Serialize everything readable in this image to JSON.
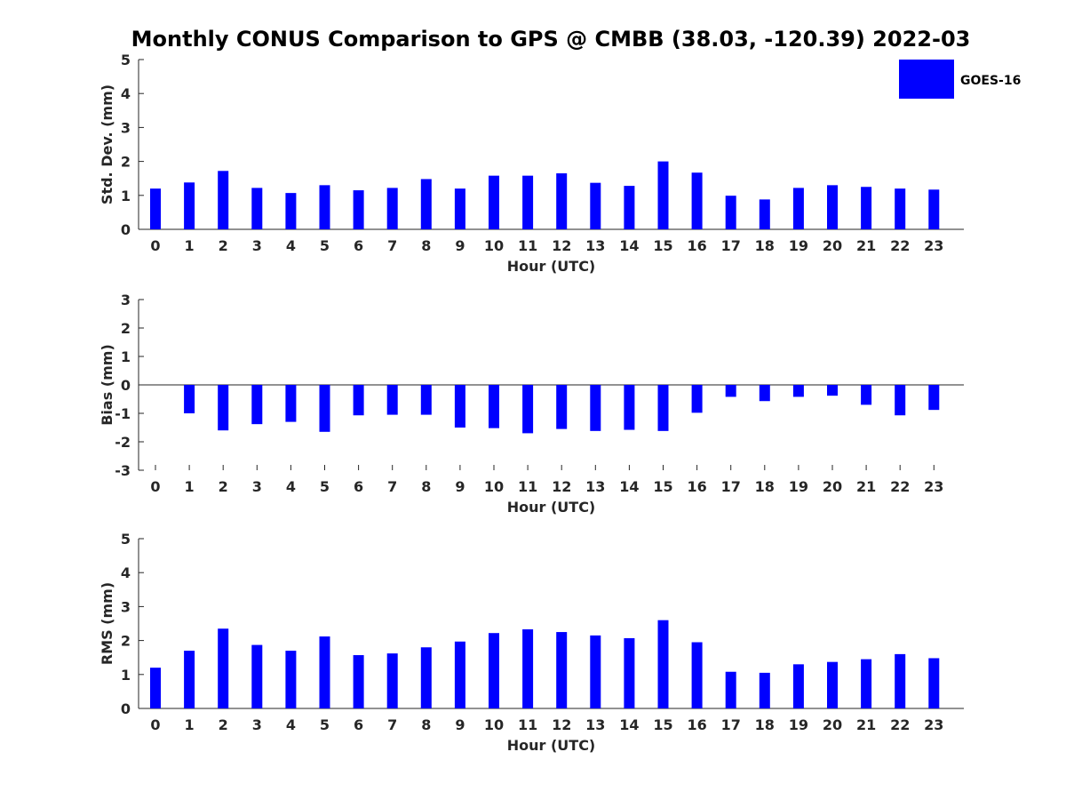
{
  "chart_data": {
    "title": "Monthly CONUS Comparison to GPS @ CMBB (38.03, -120.39) 2022-03",
    "legend": {
      "entries": [
        "GOES-16"
      ],
      "placement": "top-right"
    },
    "bar_color": "#0000ff",
    "x_categories": [
      "0",
      "1",
      "2",
      "3",
      "4",
      "5",
      "6",
      "7",
      "8",
      "9",
      "10",
      "11",
      "12",
      "13",
      "14",
      "15",
      "16",
      "17",
      "18",
      "19",
      "20",
      "21",
      "22",
      "23"
    ],
    "panels": [
      {
        "type": "bar",
        "xlabel": "Hour (UTC)",
        "ylabel": "Std. Dev. (mm)",
        "ylim": [
          0,
          5
        ],
        "yticks": [
          "0",
          "1",
          "2",
          "3",
          "4",
          "5"
        ],
        "series": [
          {
            "name": "GOES-16",
            "values": [
              1.2,
              1.38,
              1.72,
              1.22,
              1.07,
              1.3,
              1.15,
              1.22,
              1.48,
              1.2,
              1.58,
              1.58,
              1.65,
              1.37,
              1.28,
              2.0,
              1.67,
              0.99,
              0.88,
              1.22,
              1.3,
              1.25,
              1.2,
              1.17
            ]
          }
        ]
      },
      {
        "type": "bar",
        "xlabel": "Hour (UTC)",
        "ylabel": "Bias (mm)",
        "ylim": [
          -3,
          3
        ],
        "yticks": [
          "-3",
          "-2",
          "-1",
          "0",
          "1",
          "2",
          "3"
        ],
        "series": [
          {
            "name": "GOES-16",
            "values": [
              0.0,
              -1.0,
              -1.6,
              -1.38,
              -1.3,
              -1.65,
              -1.07,
              -1.05,
              -1.05,
              -1.5,
              -1.52,
              -1.7,
              -1.55,
              -1.62,
              -1.58,
              -1.62,
              -0.98,
              -0.42,
              -0.57,
              -0.42,
              -0.38,
              -0.7,
              -1.07,
              -0.88
            ]
          }
        ]
      },
      {
        "type": "bar",
        "xlabel": "Hour (UTC)",
        "ylabel": "RMS (mm)",
        "ylim": [
          0,
          5
        ],
        "yticks": [
          "0",
          "1",
          "2",
          "3",
          "4",
          "5"
        ],
        "series": [
          {
            "name": "GOES-16",
            "values": [
              1.2,
              1.7,
              2.35,
              1.87,
              1.7,
              2.12,
              1.57,
              1.62,
              1.8,
              1.97,
              2.22,
              2.33,
              2.25,
              2.15,
              2.07,
              2.6,
              1.95,
              1.08,
              1.05,
              1.3,
              1.37,
              1.45,
              1.6,
              1.48
            ]
          }
        ]
      }
    ]
  }
}
